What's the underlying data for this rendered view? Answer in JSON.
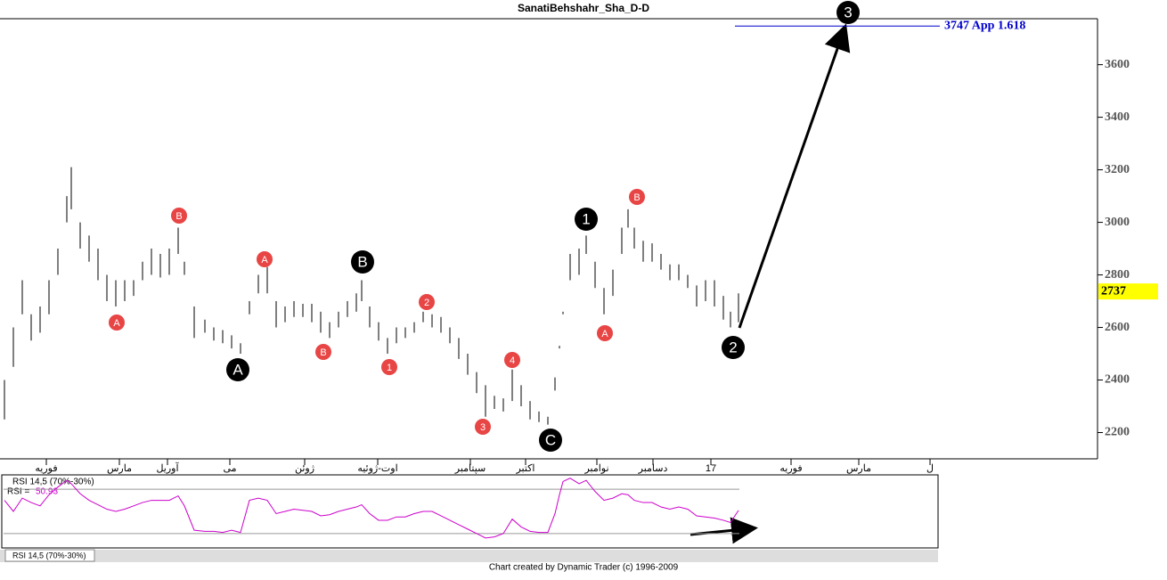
{
  "chart_data": {
    "type": "ohlc",
    "title": "SanatiBehshahr_Sha_D-D",
    "x": [
      1.25,
      3.75,
      6.25,
      8.75,
      11.25,
      13.75,
      16.25,
      18.75,
      20,
      22.5,
      25,
      27.5,
      30,
      32.5,
      35,
      37.5,
      40,
      42.5,
      45,
      47.5,
      50,
      51.75,
      54.5,
      57.5,
      60,
      62.5,
      65,
      67.5,
      70,
      72.5,
      75,
      77.5,
      80,
      82.5,
      85,
      87.5,
      90,
      92.5,
      95,
      97.5,
      100,
      101.5,
      103.75,
      106.25,
      108.75,
      111.25,
      113.75,
      116.25,
      118.75,
      121.25,
      123.75,
      126.25,
      128.75,
      131.25,
      133.75,
      136.25,
      138.75,
      141.25,
      143.75,
      146.25,
      148.75,
      151.25,
      153.75,
      155.75,
      157,
      158,
      160,
      162.5,
      164.5,
      167,
      169.5,
      172,
      174.5,
      176.25,
      178,
      180.5,
      183,
      185.5,
      188,
      190.5,
      193,
      195.5,
      198,
      200.5,
      203,
      205,
      207.25
    ],
    "high": [
      2400,
      2600,
      2780,
      2650,
      2680,
      2780,
      2900,
      3100,
      3210,
      3000,
      2950,
      2900,
      2800,
      2780,
      2780,
      2780,
      2850,
      2900,
      2880,
      2900,
      2980,
      2850,
      2680,
      2630,
      2600,
      2590,
      2570,
      2540,
      2700,
      2800,
      2830,
      2700,
      2680,
      2700,
      2690,
      2690,
      2660,
      2620,
      2660,
      2700,
      2730,
      2780,
      2680,
      2620,
      2560,
      2600,
      2600,
      2620,
      2660,
      2650,
      2640,
      2600,
      2560,
      2500,
      2430,
      2380,
      2340,
      2330,
      2440,
      2380,
      2320,
      2280,
      2260,
      2410,
      2530,
      2660,
      2880,
      2900,
      2950,
      2850,
      2750,
      2820,
      2980,
      3050,
      2980,
      2930,
      2920,
      2880,
      2840,
      2840,
      2800,
      2760,
      2780,
      2780,
      2720,
      2660,
      2730
    ],
    "low": [
      2250,
      2450,
      2650,
      2550,
      2580,
      2650,
      2800,
      3000,
      3050,
      2900,
      2850,
      2780,
      2700,
      2680,
      2700,
      2720,
      2780,
      2800,
      2790,
      2800,
      2880,
      2800,
      2560,
      2580,
      2550,
      2540,
      2520,
      2500,
      2650,
      2730,
      2730,
      2600,
      2620,
      2640,
      2640,
      2620,
      2580,
      2560,
      2600,
      2640,
      2660,
      2700,
      2600,
      2550,
      2500,
      2540,
      2560,
      2580,
      2620,
      2600,
      2580,
      2540,
      2480,
      2420,
      2350,
      2260,
      2290,
      2280,
      2320,
      2300,
      2250,
      2240,
      2230,
      2360,
      2520,
      2650,
      2780,
      2800,
      2880,
      2750,
      2650,
      2720,
      2880,
      2980,
      2900,
      2850,
      2850,
      2820,
      2780,
      2780,
      2750,
      2680,
      2700,
      2680,
      2630,
      2600,
      2620
    ],
    "rsi": [
      60,
      50,
      62,
      58,
      55,
      65,
      72,
      78,
      75,
      66,
      60,
      56,
      52,
      50,
      52,
      55,
      58,
      60,
      60,
      60,
      64,
      55,
      33,
      32,
      32,
      31,
      33,
      31,
      60,
      62,
      60,
      48,
      50,
      52,
      51,
      50,
      46,
      47,
      50,
      52,
      54,
      56,
      48,
      42,
      42,
      45,
      45,
      48,
      50,
      50,
      46,
      42,
      38,
      34,
      30,
      26,
      27,
      30,
      43,
      36,
      32,
      31,
      31,
      48,
      65,
      77,
      80,
      75,
      78,
      68,
      60,
      62,
      66,
      65,
      60,
      58,
      58,
      54,
      52,
      54,
      52,
      46,
      45,
      44,
      42,
      40,
      50.93
    ],
    "xlim": [
      0,
      263
    ],
    "ylim": [
      2100,
      3775
    ],
    "yticks": [
      2200,
      2400,
      2600,
      2800,
      3000,
      3200,
      3400,
      3600
    ],
    "xticks": [
      {
        "value": 13,
        "label": "فوریه"
      },
      {
        "value": 33.5,
        "label": "مارس"
      },
      {
        "value": 47,
        "label": "آوریل"
      },
      {
        "value": 64.5,
        "label": "می"
      },
      {
        "value": 85.5,
        "label": "ژوئن"
      },
      {
        "value": 106,
        "label": "اوت-ژوئیه"
      },
      {
        "value": 132,
        "label": "سپتامبر"
      },
      {
        "value": 147.5,
        "label": "اکتبر"
      },
      {
        "value": 167.5,
        "label": "نوامبر"
      },
      {
        "value": 183.25,
        "label": "دسامبر"
      },
      {
        "value": 199.5,
        "label": "17"
      },
      {
        "value": 222,
        "label": "فوریه"
      },
      {
        "value": 241,
        "label": "مارس"
      },
      {
        "value": 261,
        "label": "ل"
      }
    ],
    "target": {
      "value": 3747,
      "label": "3747 App 1.618"
    },
    "last_price": 2737,
    "rsi_title": "RSI 14,5 (70%-30%)",
    "rsi_label": "RSI =",
    "rsi_value": "50.93",
    "rsi_levels": [
      70,
      30
    ],
    "rsilim": [
      17,
      83
    ],
    "minor_waves": [
      "A",
      "B",
      "A",
      "B",
      "2",
      "1",
      "4",
      "3",
      "A",
      "B"
    ],
    "major_waves": [
      "A",
      "B",
      "C",
      "1",
      "2",
      "3"
    ],
    "tab": "RSI 14,5 (70%-30%)",
    "footer": "Chart created by Dynamic Trader  (c) 1996-2009",
    "color": "#000000",
    "rsi_color": "#cc00cc",
    "target_color": "#0000cc"
  }
}
